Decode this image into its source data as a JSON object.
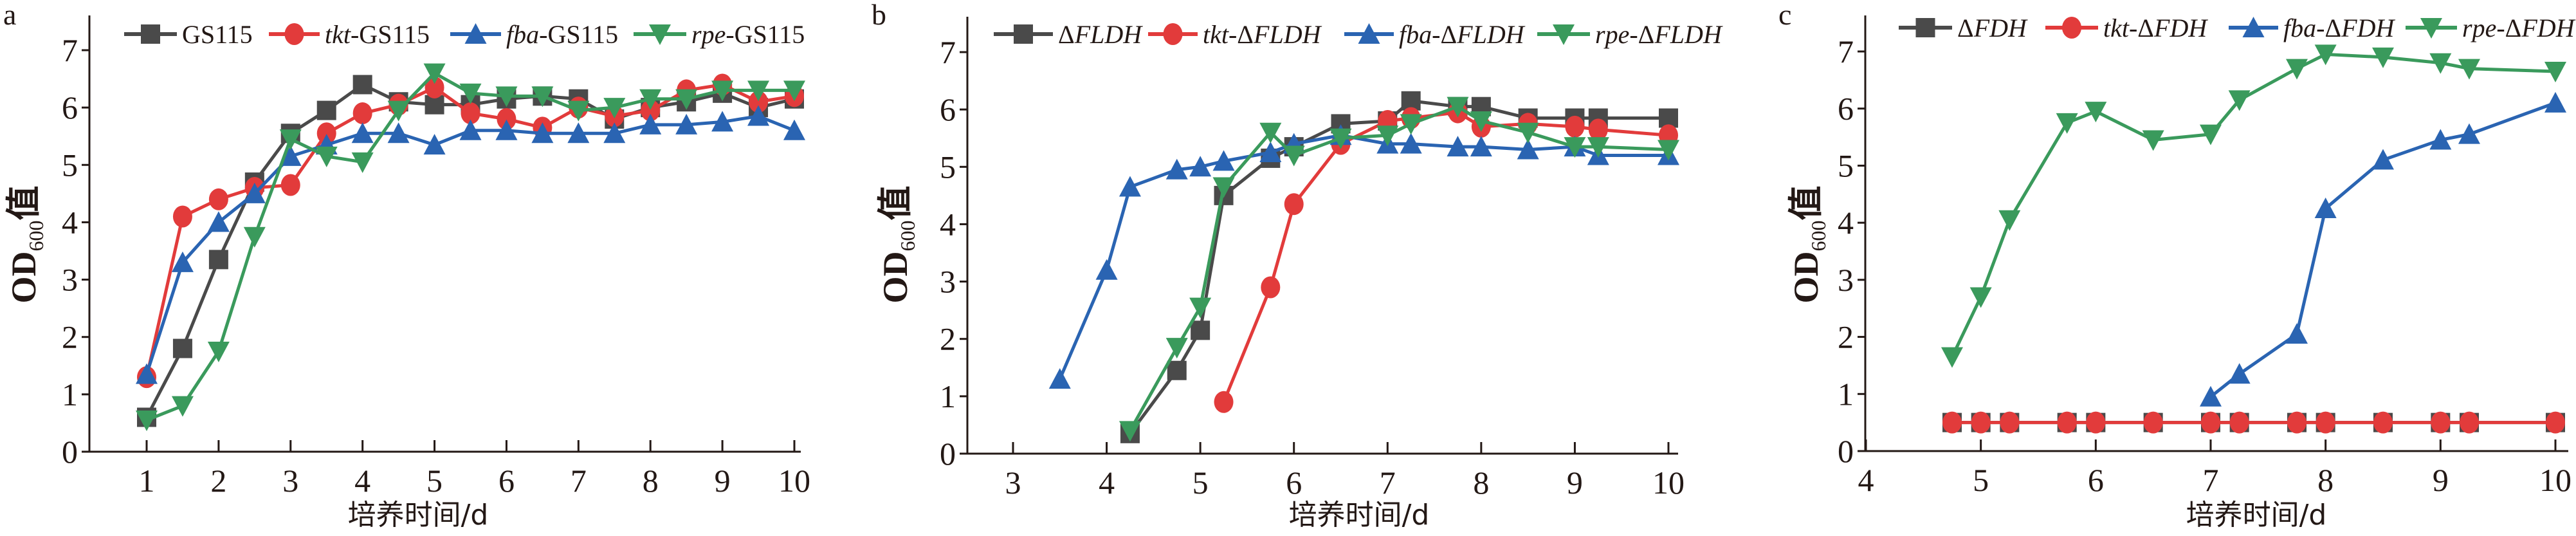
{
  "colors": {
    "gray": "#4a4a4a",
    "red": "#e23b3b",
    "blue": "#2a64b2",
    "green": "#3a9a5c",
    "axis": "#231815"
  },
  "chart_data": [
    {
      "type": "line",
      "panel_label": "a",
      "xlabel": "培养时间/d",
      "ylabel": {
        "main": "OD",
        "sub": "600",
        "suffix": "值"
      },
      "xlim": [
        0.2,
        10.1
      ],
      "ylim": [
        0,
        7.6
      ],
      "xticks": [
        1,
        2,
        3,
        4,
        5,
        6,
        7,
        8,
        9,
        10
      ],
      "yticks": [
        0,
        1,
        2,
        3,
        4,
        5,
        6,
        7
      ],
      "grid": false,
      "legend": "top",
      "series": [
        {
          "name": "GS115",
          "parts": [
            {
              "t": "GS115",
              "i": false
            }
          ],
          "color": "gray",
          "marker": "square",
          "x": [
            1,
            1.5,
            2,
            2.5,
            3,
            3.5,
            4,
            4.5,
            5,
            5.5,
            6,
            6.5,
            7,
            7.5,
            8,
            8.5,
            9,
            9.5,
            10
          ],
          "y": [
            0.6,
            1.8,
            3.35,
            4.7,
            5.55,
            5.95,
            6.4,
            6.1,
            6.05,
            6.05,
            6.15,
            6.2,
            6.15,
            5.8,
            6.0,
            6.1,
            6.25,
            6.0,
            6.15
          ]
        },
        {
          "name": "tkt-GS115",
          "parts": [
            {
              "t": "tkt",
              "i": true
            },
            {
              "t": "-GS115",
              "i": false
            }
          ],
          "color": "red",
          "marker": "circle",
          "x": [
            1,
            1.5,
            2,
            2.5,
            3,
            3.5,
            4,
            4.5,
            5,
            5.5,
            6,
            6.5,
            7,
            7.5,
            8,
            8.5,
            9,
            9.5,
            10
          ],
          "y": [
            1.3,
            4.1,
            4.4,
            4.6,
            4.65,
            5.55,
            5.9,
            6.05,
            6.35,
            5.9,
            5.8,
            5.65,
            6.0,
            5.85,
            5.95,
            6.3,
            6.4,
            6.1,
            6.2
          ]
        },
        {
          "name": "fba-GS115",
          "parts": [
            {
              "t": "fba",
              "i": true
            },
            {
              "t": "-GS115",
              "i": false
            }
          ],
          "color": "blue",
          "marker": "triangle-up",
          "x": [
            1,
            1.5,
            2,
            2.5,
            3,
            3.5,
            4,
            4.5,
            5,
            5.5,
            6,
            6.5,
            7,
            7.5,
            8,
            8.5,
            9,
            9.5,
            10
          ],
          "y": [
            1.35,
            3.3,
            4.0,
            4.5,
            5.15,
            5.35,
            5.55,
            5.55,
            5.35,
            5.6,
            5.6,
            5.55,
            5.55,
            5.55,
            5.7,
            5.7,
            5.75,
            5.85,
            5.6
          ]
        },
        {
          "name": "rpe-GS115",
          "parts": [
            {
              "t": "rpe",
              "i": true
            },
            {
              "t": "-GS115",
              "i": false
            }
          ],
          "color": "green",
          "marker": "triangle-down",
          "x": [
            1,
            1.5,
            2,
            2.5,
            3,
            3.5,
            4,
            4.5,
            5,
            5.5,
            6,
            6.5,
            7,
            7.5,
            8,
            8.5,
            9,
            9.5,
            10
          ],
          "y": [
            0.55,
            0.8,
            1.75,
            3.75,
            5.45,
            5.15,
            5.05,
            5.95,
            6.6,
            6.25,
            6.2,
            6.2,
            5.95,
            6.0,
            6.15,
            6.15,
            6.3,
            6.3,
            6.3
          ]
        }
      ]
    },
    {
      "type": "line",
      "panel_label": "b",
      "xlabel": "培养时间/d",
      "ylabel": {
        "main": "OD",
        "sub": "600",
        "suffix": "值"
      },
      "xlim": [
        2.5,
        10.1
      ],
      "ylim": [
        0,
        7.6
      ],
      "xticks": [
        3,
        4,
        5,
        6,
        7,
        8,
        9,
        10
      ],
      "yticks": [
        0,
        1,
        2,
        3,
        4,
        5,
        6,
        7
      ],
      "grid": false,
      "legend": "top",
      "series": [
        {
          "name": "ΔFLDH",
          "parts": [
            {
              "t": "Δ",
              "i": false
            },
            {
              "t": "FLDH",
              "i": true
            }
          ],
          "color": "gray",
          "marker": "square",
          "x": [
            4.25,
            4.75,
            5,
            5.25,
            5.75,
            6,
            6.5,
            7,
            7.25,
            7.75,
            8,
            8.5,
            9,
            9.25,
            10
          ],
          "y": [
            0.35,
            1.45,
            2.15,
            4.5,
            5.15,
            5.35,
            5.75,
            5.8,
            6.15,
            6.05,
            6.05,
            5.85,
            5.85,
            5.85,
            5.85
          ]
        },
        {
          "name": "tkt-ΔFLDH",
          "parts": [
            {
              "t": "tkt",
              "i": true
            },
            {
              "t": "-Δ",
              "i": false
            },
            {
              "t": "FLDH",
              "i": true
            }
          ],
          "color": "red",
          "marker": "circle",
          "x": [
            5.25,
            5.75,
            6,
            6.5,
            7,
            7.25,
            7.75,
            8,
            8.5,
            9,
            9.25,
            10
          ],
          "y": [
            0.9,
            2.9,
            4.35,
            5.4,
            5.8,
            5.85,
            5.95,
            5.7,
            5.75,
            5.7,
            5.65,
            5.55
          ]
        },
        {
          "name": "fba-ΔFLDH",
          "parts": [
            {
              "t": "fba",
              "i": true
            },
            {
              "t": "-Δ",
              "i": false
            },
            {
              "t": "FLDH",
              "i": true
            }
          ],
          "color": "blue",
          "marker": "triangle-up",
          "x": [
            3.5,
            4,
            4.25,
            4.75,
            5,
            5.25,
            5.75,
            6,
            6.5,
            7,
            7.25,
            7.75,
            8,
            8.5,
            9,
            9.25,
            10
          ],
          "y": [
            1.3,
            3.2,
            4.65,
            4.95,
            5.0,
            5.1,
            5.25,
            5.4,
            5.55,
            5.4,
            5.4,
            5.35,
            5.35,
            5.3,
            5.35,
            5.2,
            5.2
          ]
        },
        {
          "name": "rpe-ΔFLDH",
          "parts": [
            {
              "t": "rpe",
              "i": true
            },
            {
              "t": "-Δ",
              "i": false
            },
            {
              "t": "FLDH",
              "i": true
            }
          ],
          "color": "green",
          "marker": "triangle-down",
          "x": [
            4.25,
            4.75,
            5,
            5.25,
            5.75,
            6,
            6.5,
            7,
            7.25,
            7.75,
            8,
            8.5,
            9,
            9.25,
            10
          ],
          "y": [
            0.4,
            1.85,
            2.55,
            4.65,
            5.6,
            5.2,
            5.5,
            5.55,
            5.75,
            6.05,
            5.8,
            5.6,
            5.35,
            5.35,
            5.3
          ]
        }
      ]
    },
    {
      "type": "line",
      "panel_label": "c",
      "xlabel": "培养时间/d",
      "ylabel": {
        "main": "OD",
        "sub": "600",
        "suffix": "值"
      },
      "xlim": [
        4,
        10.1
      ],
      "ylim": [
        0,
        7.6
      ],
      "xticks": [
        4,
        5,
        6,
        7,
        8,
        9,
        10
      ],
      "yticks": [
        0,
        1,
        2,
        3,
        4,
        5,
        6,
        7
      ],
      "grid": false,
      "legend": "top",
      "series": [
        {
          "name": "ΔFDH",
          "parts": [
            {
              "t": "Δ",
              "i": false
            },
            {
              "t": "FDH",
              "i": true
            }
          ],
          "color": "gray",
          "marker": "square",
          "x": [
            4.75,
            5,
            5.25,
            5.75,
            6,
            6.5,
            7,
            7.25,
            7.75,
            8,
            8.5,
            9,
            9.25,
            10
          ],
          "y": [
            0.5,
            0.5,
            0.5,
            0.5,
            0.5,
            0.5,
            0.5,
            0.5,
            0.5,
            0.5,
            0.5,
            0.5,
            0.5,
            0.5
          ]
        },
        {
          "name": "tkt-ΔFDH",
          "parts": [
            {
              "t": "tkt",
              "i": true
            },
            {
              "t": "-Δ",
              "i": false
            },
            {
              "t": "FDH",
              "i": true
            }
          ],
          "color": "red",
          "marker": "circle",
          "x": [
            4.75,
            5,
            5.25,
            5.75,
            6,
            6.5,
            7,
            7.25,
            7.75,
            8,
            8.5,
            9,
            9.25,
            10
          ],
          "y": [
            0.5,
            0.5,
            0.5,
            0.5,
            0.5,
            0.5,
            0.5,
            0.5,
            0.5,
            0.5,
            0.5,
            0.5,
            0.5,
            0.5
          ]
        },
        {
          "name": "fba-ΔFDH",
          "parts": [
            {
              "t": "fba",
              "i": true
            },
            {
              "t": "-Δ",
              "i": false
            },
            {
              "t": "FDH",
              "i": true
            }
          ],
          "color": "blue",
          "marker": "triangle-up",
          "x": [
            7,
            7.25,
            7.75,
            8,
            8.5,
            9,
            9.25,
            10
          ],
          "y": [
            0.95,
            1.35,
            2.05,
            4.25,
            5.1,
            5.45,
            5.55,
            6.1
          ]
        },
        {
          "name": "rpe-ΔFDH",
          "parts": [
            {
              "t": "rpe",
              "i": true
            },
            {
              "t": "-Δ",
              "i": false
            },
            {
              "t": "FDH",
              "i": true
            }
          ],
          "color": "green",
          "marker": "triangle-down",
          "x": [
            4.75,
            5,
            5.25,
            5.75,
            6,
            6.5,
            7,
            7.25,
            7.75,
            8,
            8.5,
            9,
            9.25,
            10
          ],
          "y": [
            1.65,
            2.7,
            4.05,
            5.75,
            5.95,
            5.45,
            5.55,
            6.15,
            6.7,
            6.95,
            6.9,
            6.8,
            6.7,
            6.65
          ]
        }
      ]
    }
  ]
}
